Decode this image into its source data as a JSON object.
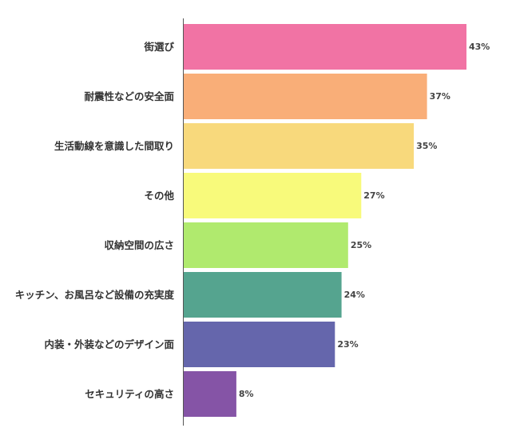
{
  "chart_data": {
    "type": "bar",
    "orientation": "horizontal",
    "categories": [
      "街選び",
      "耐震性などの安全面",
      "生活動線を意識した間取り",
      "その他",
      "収納空間の広さ",
      "キッチン、お風呂など設備の充実度",
      "内装・外装などのデザイン面",
      "セキュリティの高さ"
    ],
    "values": [
      43,
      37,
      35,
      27,
      25,
      24,
      23,
      8
    ],
    "value_labels": [
      "43%",
      "37%",
      "35%",
      "27%",
      "25%",
      "24%",
      "23%",
      "8%"
    ],
    "colors": [
      "#f173a4",
      "#f9ae78",
      "#f8d97c",
      "#f8fa7b",
      "#b0ea6e",
      "#55a48f",
      "#6566ac",
      "#8554a6"
    ],
    "xlim": [
      0,
      43
    ],
    "grid": false,
    "legend": "none"
  }
}
